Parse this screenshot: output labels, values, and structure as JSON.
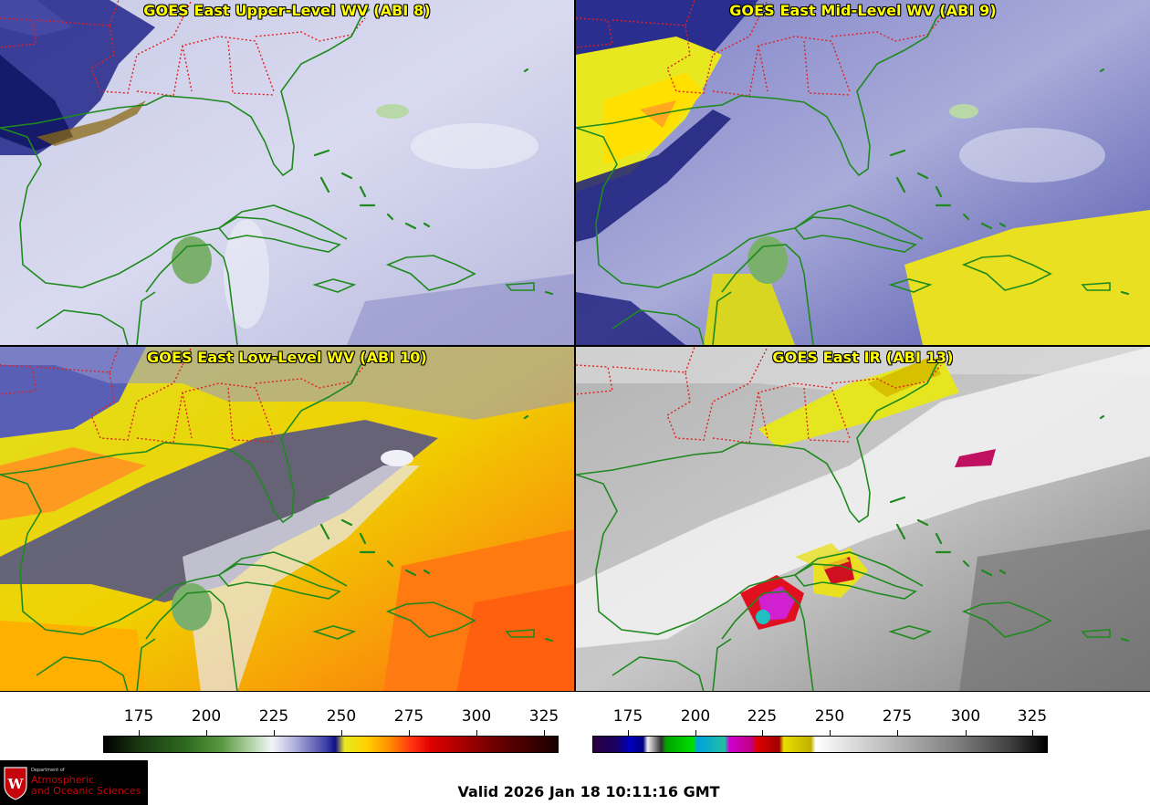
{
  "panels": [
    {
      "title": "GOES East Upper-Level WV (ABI 8)"
    },
    {
      "title": "GOES East Mid-Level WV (ABI 9)"
    },
    {
      "title": "GOES East Low-Level WV (ABI 10)"
    },
    {
      "title": "GOES East IR (ABI 13)"
    }
  ],
  "colorbars": [
    {
      "name": "water-vapor",
      "ticks": [
        "175",
        "200",
        "225",
        "250",
        "275",
        "300",
        "325"
      ]
    },
    {
      "name": "infrared",
      "ticks": [
        "175",
        "200",
        "225",
        "250",
        "275",
        "300",
        "325"
      ]
    }
  ],
  "valid_time": "Valid 2026 Jan 18 10:11:16 GMT",
  "logo": {
    "dept": "Department of",
    "line1": "Atmospheric",
    "line2": "and Oceanic Sciences",
    "letter": "W"
  },
  "colors": {
    "coast": "#1e8a1e",
    "borders": "#e02020",
    "title_text": "#ffff00"
  }
}
